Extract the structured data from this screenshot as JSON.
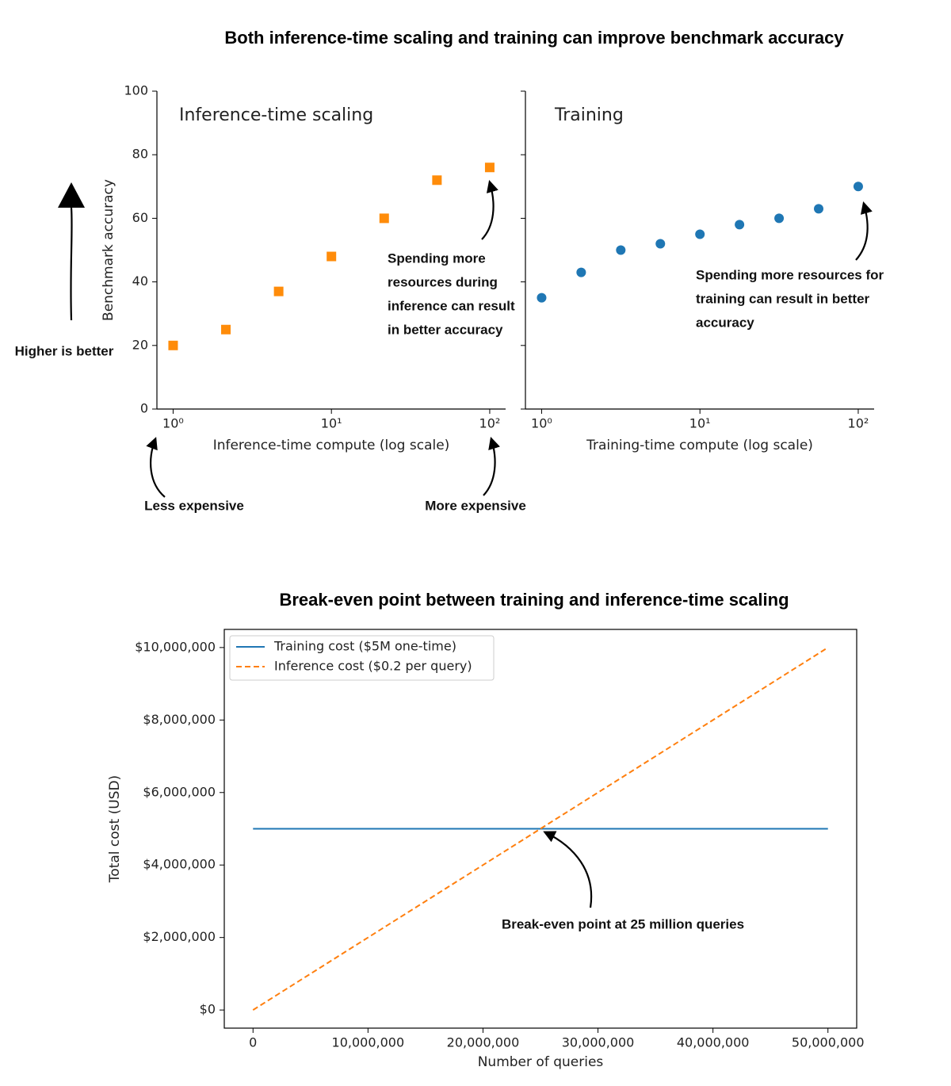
{
  "title": "Both inference-time scaling and training can improve benchmark accuracy",
  "annotations": [
    "Higher is better",
    "Less expensive",
    "More expensive"
  ],
  "chart_data": [
    {
      "type": "scatter",
      "title": "Inference-time scaling",
      "xlabel": "Inference-time compute (log scale)",
      "ylabel": "Benchmark accuracy",
      "xscale": "log",
      "xlim": [
        0.79,
        126
      ],
      "ylim": [
        0,
        100
      ],
      "xticks": [
        {
          "value": 1,
          "label": "10⁰"
        },
        {
          "value": 10,
          "label": "10¹"
        },
        {
          "value": 100,
          "label": "10²"
        }
      ],
      "yticks": [
        0,
        20,
        40,
        60,
        80,
        100
      ],
      "marker": "square",
      "color": "#ff8c0a",
      "x": [
        1,
        2.154,
        4.642,
        10,
        21.54,
        46.42,
        100
      ],
      "values": [
        20,
        25,
        37,
        48,
        60,
        72,
        76
      ],
      "annotations": [
        [
          "Spending more",
          "resources during",
          "inference can result",
          "in better accuracy"
        ]
      ]
    },
    {
      "type": "scatter",
      "title": "Training",
      "xlabel": "Training-time compute (log scale)",
      "xscale": "log",
      "xlim": [
        0.79,
        126
      ],
      "ylim": [
        0,
        100
      ],
      "xticks": [
        {
          "value": 1,
          "label": "10⁰"
        },
        {
          "value": 10,
          "label": "10¹"
        },
        {
          "value": 100,
          "label": "10²"
        }
      ],
      "yticks": [
        0,
        20,
        40,
        60,
        80,
        100
      ],
      "marker": "circle",
      "color": "#1f77b4",
      "x": [
        1,
        1.778,
        3.162,
        5.623,
        10,
        17.78,
        31.62,
        56.23,
        100
      ],
      "values": [
        35,
        43,
        50,
        52,
        55,
        58,
        60,
        63,
        70
      ],
      "annotations": [
        [
          "Spending more resources for",
          "training can result in better",
          "accuracy"
        ]
      ]
    },
    {
      "type": "line",
      "title": "Break-even point between training and inference-time scaling",
      "xlabel": "Number of queries",
      "ylabel": "Total cost (USD)",
      "xlim": [
        -2500000,
        52500000
      ],
      "ylim": [
        -500000,
        10500000
      ],
      "xticks": [
        0,
        {
          "value": 10000000,
          "label": "10,000,000"
        },
        {
          "value": 20000000,
          "label": "20,000,000"
        },
        {
          "value": 30000000,
          "label": "30,000,000"
        },
        {
          "value": 40000000,
          "label": "40,000,000"
        },
        {
          "value": 50000000,
          "label": "50,000,000"
        }
      ],
      "yticks": [
        {
          "value": 0,
          "label": "$0"
        },
        {
          "value": 2000000,
          "label": "$2,000,000"
        },
        {
          "value": 4000000,
          "label": "$4,000,000"
        },
        {
          "value": 6000000,
          "label": "$6,000,000"
        },
        {
          "value": 8000000,
          "label": "$8,000,000"
        },
        {
          "value": 10000000,
          "label": "$10,000,000"
        }
      ],
      "legend": "upper left",
      "x": [
        0,
        50000000
      ],
      "series": [
        {
          "name": "Training cost ($5M one-time)",
          "color": "#1f77b4",
          "dash": "solid",
          "values": [
            5000000,
            5000000
          ]
        },
        {
          "name": "Inference cost ($0.2 per query)",
          "color": "#ff7f0e",
          "dash": "dashed",
          "values": [
            0,
            10000000
          ]
        }
      ],
      "annotations": [
        "Break-even point at 25 million queries"
      ]
    }
  ]
}
